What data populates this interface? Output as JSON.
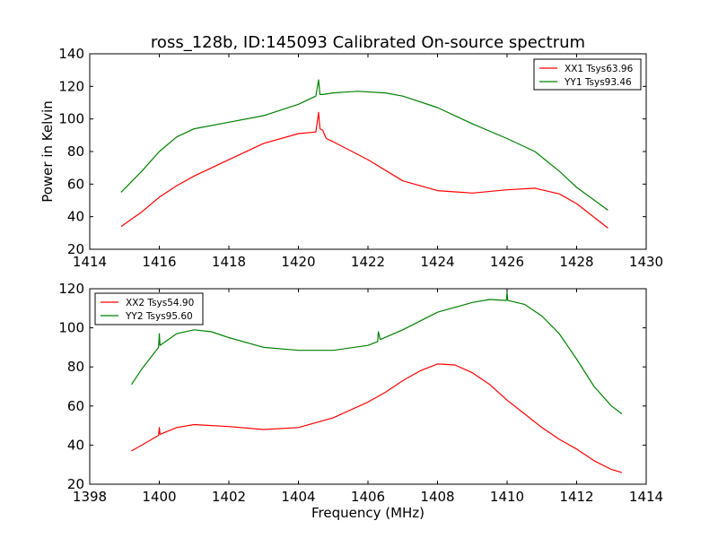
{
  "chart_data": [
    {
      "type": "line",
      "title": "ross_128b, ID:145093 Calibrated On-source spectrum",
      "xlabel": "",
      "ylabel": "Power in Kelvin",
      "xlim": [
        1414,
        1430
      ],
      "ylim": [
        20,
        140
      ],
      "xticks": [
        1414,
        1416,
        1418,
        1420,
        1422,
        1424,
        1426,
        1428,
        1430
      ],
      "yticks": [
        20,
        40,
        60,
        80,
        100,
        120,
        140
      ],
      "legend_position": "top-right",
      "series": [
        {
          "name": "XX1 Tsys63.96",
          "color": "#ff0000",
          "x": [
            1414.9,
            1415.5,
            1416,
            1416.5,
            1417,
            1418,
            1419,
            1420,
            1420.5,
            1420.58,
            1420.62,
            1420.7,
            1420.8,
            1421,
            1422,
            1423,
            1424,
            1425,
            1426,
            1426.8,
            1427.5,
            1428,
            1428.9
          ],
          "y": [
            34,
            43,
            52,
            59,
            65,
            75,
            85,
            91,
            92,
            104,
            94,
            93,
            88,
            86,
            75,
            62,
            56,
            54.5,
            56.5,
            57.5,
            54,
            48,
            33
          ]
        },
        {
          "name": "YY1 Tsys93.46",
          "color": "#008000",
          "x": [
            1414.9,
            1415.5,
            1416,
            1416.5,
            1417,
            1418,
            1419,
            1420,
            1420.5,
            1420.58,
            1420.62,
            1420.7,
            1421,
            1421.7,
            1422.5,
            1423,
            1424,
            1425,
            1426,
            1426.8,
            1427.5,
            1428,
            1428.9
          ],
          "y": [
            55,
            68,
            80,
            89,
            94,
            98,
            102,
            109,
            114,
            124,
            115,
            115,
            116,
            117,
            116,
            114,
            107,
            97,
            88,
            80,
            68,
            58,
            44
          ]
        }
      ]
    },
    {
      "type": "line",
      "title": "",
      "xlabel": "Frequency (MHz)",
      "ylabel": "",
      "xlim": [
        1398,
        1414
      ],
      "ylim": [
        20,
        120
      ],
      "xticks": [
        1398,
        1400,
        1402,
        1404,
        1406,
        1408,
        1410,
        1412,
        1414
      ],
      "yticks": [
        20,
        40,
        60,
        80,
        100,
        120
      ],
      "legend_position": "top-left",
      "series": [
        {
          "name": "XX2 Tsys54.90",
          "color": "#ff0000",
          "x": [
            1399.2,
            1399.5,
            1399.98,
            1400,
            1400.02,
            1400.5,
            1401,
            1402,
            1403,
            1404,
            1405,
            1406,
            1406.5,
            1407,
            1407.5,
            1408,
            1408.5,
            1409,
            1409.5,
            1410,
            1410.5,
            1411,
            1411.5,
            1412,
            1412.5,
            1413,
            1413.3
          ],
          "y": [
            37,
            40,
            45,
            49,
            45.5,
            49,
            50.5,
            49.5,
            48,
            49,
            54,
            62,
            67,
            73,
            78,
            81.5,
            81,
            77,
            71,
            63,
            56,
            49,
            43,
            38,
            32,
            27.5,
            26
          ]
        },
        {
          "name": "YY2 Tsys95.60",
          "color": "#008000",
          "x": [
            1399.2,
            1399.5,
            1399.98,
            1400,
            1400.02,
            1400.5,
            1401,
            1401.5,
            1402,
            1403,
            1404,
            1405,
            1406,
            1406.28,
            1406.3,
            1406.35,
            1407,
            1408,
            1409,
            1409.5,
            1409.98,
            1410,
            1410.02,
            1410.5,
            1411,
            1411.5,
            1412,
            1412.5,
            1413,
            1413.3
          ],
          "y": [
            71,
            79,
            90,
            97,
            91,
            97,
            99,
            98,
            95,
            90,
            88.5,
            88.5,
            91,
            93,
            98,
            94,
            99,
            108,
            113,
            114.5,
            114,
            118,
            114,
            112,
            106,
            97,
            84,
            70,
            60,
            56
          ]
        }
      ]
    }
  ]
}
